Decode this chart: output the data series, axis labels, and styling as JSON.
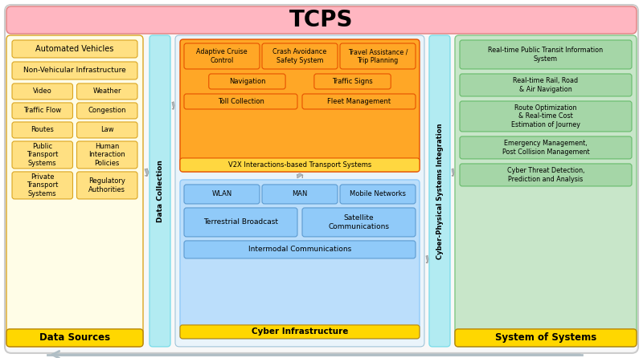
{
  "title": "TCPS",
  "title_fontsize": 20,
  "title_bg": "#FFB6C1",
  "outer_bg": "#FFFFFF",
  "data_sources_label": "Data Sources",
  "data_sources_bg": "#FFD700",
  "data_sources_border": "#B8860B",
  "left_panel_bg": "#FFFDE7",
  "left_panel_border": "#DAA520",
  "data_collection_label": "Data Collection",
  "dc_bg": "#B2EBF2",
  "dc_border": "#80DEEA",
  "cyber_integration_label": "Cyber-Physical Systems Integration",
  "cps_bg": "#B2EBF2",
  "cps_border": "#80DEEA",
  "center_top_bg": "#FFA726",
  "center_top_inner": "#FFB74D",
  "center_top_border": "#E65100",
  "v2x_label": "V2X Interactions-based Transport Systems",
  "transport_boxes_row1": [
    "Adaptive Cruise\nControl",
    "Crash Avoidance\nSafety System",
    "Travel Assistance /\nTrip Planning"
  ],
  "transport_boxes_row2": [
    "Navigation",
    "Traffic Signs"
  ],
  "transport_boxes_row3": [
    "Toll Collection",
    "Fleet Management"
  ],
  "cyber_infra_label": "Cyber Infrastructure",
  "cyber_infra_bg": "#FFD700",
  "cyber_infra_border": "#B8860B",
  "ci_inner_bg": "#BBDEFB",
  "ci_inner_border": "#90CAF9",
  "cyber_boxes_row1": [
    "WLAN",
    "MAN",
    "Mobile Networks"
  ],
  "cyber_boxes_row2": [
    "Terrestrial Broadcast",
    "Satellite\nCommunications"
  ],
  "cyber_boxes_row3": [
    "Intermodal Communications"
  ],
  "right_panel_bg": "#C8E6C9",
  "right_panel_border": "#81C784",
  "system_of_systems_label": "System of Systems",
  "system_of_systems_bg": "#FFD700",
  "right_boxes": [
    "Real-time Public Transit Information\nSystem",
    "Real-time Rail, Road\n& Air Navigation",
    "Route Optimization\n& Real-time Cost\nEstimation of Journey",
    "Emergency Management,\nPost Collision Management",
    "Cyber Threat Detection,\nPrediction and Analysis"
  ],
  "arrow_color": "#9E9E9E",
  "arrow_fill": "#B0BEC5"
}
